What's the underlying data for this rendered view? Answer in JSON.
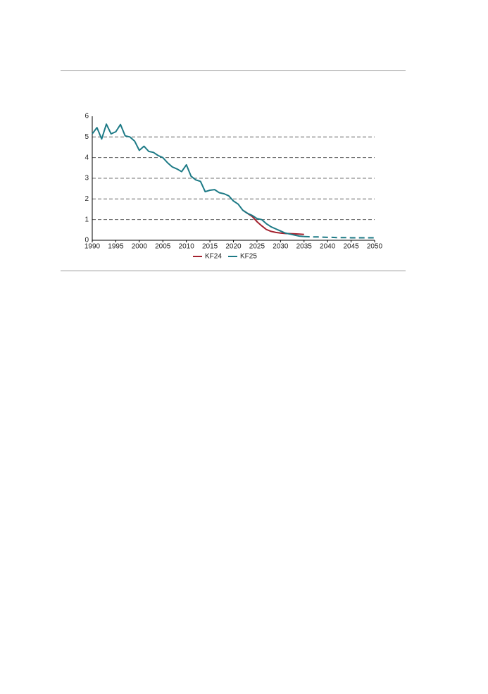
{
  "chart_data": {
    "type": "line",
    "x": [
      1990,
      1991,
      1992,
      1993,
      1994,
      1995,
      1996,
      1997,
      1998,
      1999,
      2000,
      2001,
      2002,
      2003,
      2004,
      2005,
      2006,
      2007,
      2008,
      2009,
      2010,
      2011,
      2012,
      2013,
      2014,
      2015,
      2016,
      2017,
      2018,
      2019,
      2020,
      2021,
      2022,
      2023,
      2024,
      2025,
      2026,
      2027,
      2028,
      2029,
      2030,
      2031,
      2032,
      2033,
      2034,
      2035,
      2036,
      2037,
      2038,
      2039,
      2040,
      2041,
      2042,
      2043,
      2044,
      2045,
      2046,
      2047,
      2048,
      2049,
      2050
    ],
    "series": [
      {
        "name": "KF24",
        "color": "#a3222f",
        "values": [
          null,
          null,
          null,
          null,
          null,
          null,
          null,
          null,
          null,
          null,
          null,
          null,
          null,
          null,
          null,
          null,
          null,
          null,
          null,
          null,
          null,
          null,
          null,
          null,
          null,
          null,
          null,
          null,
          null,
          null,
          null,
          null,
          1.45,
          1.3,
          1.15,
          0.9,
          0.7,
          0.52,
          0.43,
          0.38,
          0.35,
          0.33,
          0.32,
          0.31,
          0.3,
          0.28,
          null,
          null,
          null,
          null,
          null,
          null,
          null,
          null,
          null,
          null,
          null,
          null,
          null,
          null,
          null
        ]
      },
      {
        "name": "KF25",
        "color": "#1d7a86",
        "dashed_after": 2035,
        "values": [
          5.15,
          5.45,
          4.9,
          5.62,
          5.15,
          5.25,
          5.6,
          5.05,
          5.0,
          4.8,
          4.35,
          4.55,
          4.3,
          4.25,
          4.1,
          4.0,
          3.75,
          3.55,
          3.45,
          3.32,
          3.65,
          3.1,
          2.92,
          2.85,
          2.35,
          2.42,
          2.45,
          2.3,
          2.25,
          2.15,
          1.9,
          1.75,
          1.45,
          1.3,
          1.2,
          1.05,
          1.0,
          0.8,
          0.65,
          0.55,
          0.45,
          0.35,
          0.3,
          0.25,
          0.2,
          0.18,
          0.17,
          0.16,
          0.16,
          0.15,
          0.14,
          0.14,
          0.13,
          0.13,
          0.13,
          0.12,
          0.12,
          0.12,
          0.12,
          0.12,
          0.12
        ]
      }
    ],
    "xlim": [
      1990,
      2050
    ],
    "xticks": [
      1990,
      1995,
      2000,
      2005,
      2010,
      2015,
      2020,
      2025,
      2030,
      2035,
      2040,
      2045,
      2050
    ],
    "ylim": [
      0,
      6
    ],
    "yticks": [
      0,
      1,
      2,
      3,
      4,
      5,
      6
    ],
    "grid": true
  }
}
